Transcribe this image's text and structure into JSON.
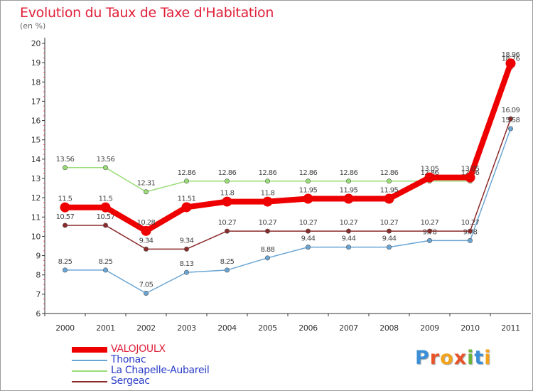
{
  "title": "Evolution du Taux de Taxe d'Habitation",
  "subtitle": "(en %)",
  "logo": {
    "text": "Proxiti",
    "colors": [
      "#3a8fd6",
      "#e8542a",
      "#f2a31b",
      "#e8542a",
      "#6cb33e",
      "#3a8fd6",
      "#f2a31b"
    ]
  },
  "chart_data": {
    "type": "line",
    "x": [
      "2000",
      "2001",
      "2002",
      "2003",
      "2004",
      "2005",
      "2006",
      "2007",
      "2008",
      "2009",
      "2010",
      "2011"
    ],
    "ylim": [
      6,
      20
    ],
    "yticks": [
      "6",
      "7",
      "8",
      "9",
      "10",
      "11",
      "12",
      "13",
      "14",
      "15",
      "16",
      "17",
      "18",
      "19",
      "20"
    ],
    "grid": false,
    "legend_position": "bottom-left",
    "series": [
      {
        "name": "VALOJOULX",
        "color": "#ee0000",
        "emphasis": true,
        "values": [
          11.5,
          11.5,
          10.28,
          11.51,
          11.8,
          11.8,
          11.95,
          11.95,
          11.95,
          13.05,
          13.05,
          18.96
        ],
        "labels": [
          "11.5",
          "11.5",
          "10.28",
          "11.51",
          "11.8",
          "11.8",
          "11.95",
          "11.95",
          "11.95",
          "13.05",
          "13.05",
          "18.96"
        ]
      },
      {
        "name": "Thonac",
        "color": "#6aa5d4",
        "values": [
          8.25,
          8.25,
          7.05,
          8.13,
          8.25,
          8.88,
          9.44,
          9.44,
          9.44,
          9.78,
          9.78,
          15.58
        ],
        "labels": [
          "8.25",
          "8.25",
          "7.05",
          "8.13",
          "8.25",
          "8.88",
          "9.44",
          "9.44",
          "9.44",
          "9.78",
          "9.78",
          "15.58"
        ]
      },
      {
        "name": "La Chapelle-Aubareil",
        "color": "#99dd77",
        "values": [
          13.56,
          13.56,
          12.31,
          12.86,
          12.86,
          12.86,
          12.86,
          12.86,
          12.86,
          12.86,
          12.86,
          18.76
        ],
        "labels": [
          "13.56",
          "13.56",
          "12.31",
          "12.86",
          "12.86",
          "12.86",
          "12.86",
          "12.86",
          "12.86",
          "12.86",
          "12.86",
          "18.76"
        ]
      },
      {
        "name": "Sergeac",
        "color": "#8b2a2a",
        "values": [
          10.57,
          10.57,
          9.34,
          9.34,
          10.27,
          10.27,
          10.27,
          10.27,
          10.27,
          10.27,
          10.27,
          16.09
        ],
        "labels": [
          "10.57",
          "10.57",
          "9.34",
          "9.34",
          "10.27",
          "10.27",
          "10.27",
          "10.27",
          "10.27",
          "10.27",
          "10.27",
          "16.09"
        ]
      }
    ]
  }
}
